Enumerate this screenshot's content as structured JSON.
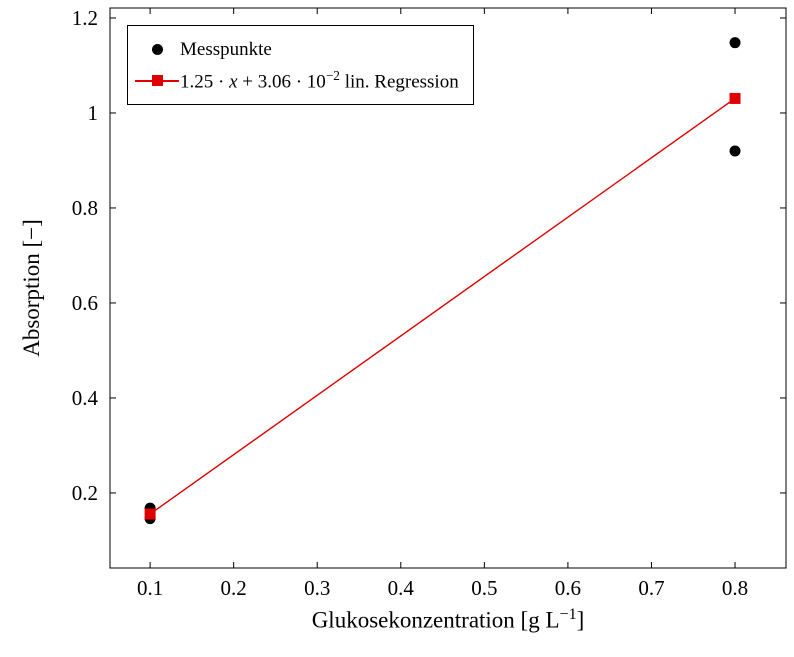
{
  "figure": {
    "background": "#ffffff",
    "accent_red": "#e00000",
    "marker_black": "#000000"
  },
  "axes": {
    "ylabel": "Absorption [−]",
    "xlabel_prefix": "Glukosekonzentration [g L",
    "xlabel_exp": "−1",
    "xlabel_suffix": "]"
  },
  "legend": {
    "position": "top-left",
    "entries": [
      {
        "type": "scatter",
        "label": "Messpunkte",
        "marker_color": "#000000"
      },
      {
        "type": "line",
        "label_prefix": "1.25 · ",
        "label_var": "x",
        "label_mid": " + 3.06 · 10",
        "label_exp": "−2",
        "label_suffix": " lin. Regression",
        "line_color": "#e00000"
      }
    ]
  },
  "chart_data": {
    "type": "scatter",
    "title": "",
    "xlabel": "Glukosekonzentration [g L^−1]",
    "ylabel": "Absorption [−]",
    "grid": false,
    "legend_position": "top-left",
    "xlim": [
      0.052,
      0.861
    ],
    "ylim": [
      0.042,
      1.221
    ],
    "xticks": [
      0.1,
      0.2,
      0.3,
      0.4,
      0.5,
      0.6,
      0.7,
      0.8
    ],
    "xtick_labels": [
      "0.1",
      "0.2",
      "0.3",
      "0.4",
      "0.5",
      "0.6",
      "0.7",
      "0.8"
    ],
    "yticks": [
      0.2,
      0.4,
      0.6,
      0.8,
      1.0,
      1.2
    ],
    "ytick_labels": [
      "0.2",
      "0.4",
      "0.6",
      "0.8",
      "1",
      "1.2"
    ],
    "series": [
      {
        "name": "Messpunkte",
        "type": "scatter",
        "color": "#000000",
        "marker": "circle",
        "points": [
          [
            0.1,
            0.168
          ],
          [
            0.1,
            0.146
          ],
          [
            0.8,
            0.92
          ],
          [
            0.8,
            1.148
          ]
        ]
      },
      {
        "name": "lin. Regression",
        "type": "line",
        "color": "#e00000",
        "marker": "square",
        "equation": "y = 1.25·x + 3.06·10⁻²",
        "points": [
          [
            0.1,
            0.1556
          ],
          [
            0.8,
            1.0306
          ]
        ]
      }
    ]
  }
}
